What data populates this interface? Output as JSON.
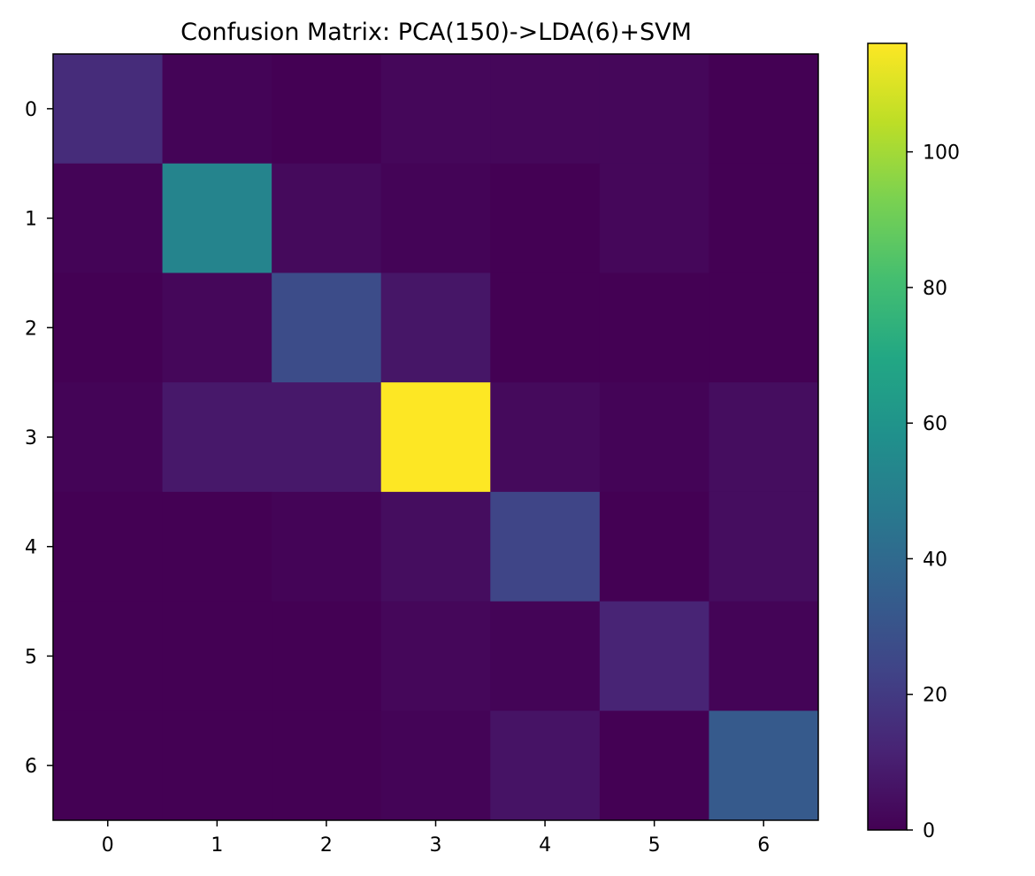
{
  "chart_data": {
    "type": "heatmap",
    "title": "Confusion Matrix: PCA(150)->LDA(6)+SVM",
    "xlabel": "",
    "ylabel": "",
    "x_ticks": [
      "0",
      "1",
      "2",
      "3",
      "4",
      "5",
      "6"
    ],
    "y_ticks": [
      "0",
      "1",
      "2",
      "3",
      "4",
      "5",
      "6"
    ],
    "matrix": [
      [
        15,
        1,
        0,
        2,
        2,
        2,
        0
      ],
      [
        1,
        52,
        3,
        1,
        0,
        2,
        0
      ],
      [
        0,
        2,
        27,
        7,
        0,
        0,
        0
      ],
      [
        1,
        8,
        8,
        116,
        3,
        1,
        4
      ],
      [
        0,
        0,
        1,
        4,
        24,
        0,
        4
      ],
      [
        0,
        0,
        0,
        2,
        1,
        12,
        1
      ],
      [
        0,
        0,
        0,
        1,
        6,
        0,
        33
      ]
    ],
    "colormap": "viridis",
    "colorbar": {
      "range": [
        0,
        116
      ],
      "ticks": [
        0,
        20,
        40,
        60,
        80,
        100
      ]
    },
    "grid": false
  }
}
